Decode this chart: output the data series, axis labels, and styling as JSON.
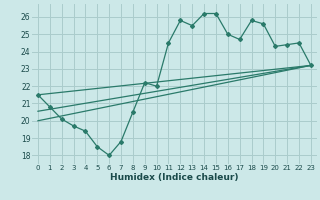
{
  "title": "",
  "xlabel": "Humidex (Indice chaleur)",
  "background_color": "#cce8e8",
  "grid_color": "#aacccc",
  "line_color": "#2a7a6a",
  "x_data": [
    0,
    1,
    2,
    3,
    4,
    5,
    6,
    7,
    8,
    9,
    10,
    11,
    12,
    13,
    14,
    15,
    16,
    17,
    18,
    19,
    20,
    21,
    22,
    23
  ],
  "y_main": [
    21.5,
    20.8,
    20.1,
    19.7,
    19.4,
    18.5,
    18.0,
    18.8,
    20.5,
    22.2,
    22.0,
    24.5,
    25.8,
    25.5,
    26.2,
    26.2,
    25.0,
    24.7,
    25.8,
    25.6,
    24.3,
    24.4,
    24.5,
    23.2
  ],
  "trend1_x": [
    0,
    23
  ],
  "trend1_y": [
    21.5,
    23.2
  ],
  "trend2_x": [
    0,
    23
  ],
  "trend2_y": [
    20.0,
    23.2
  ],
  "trend3_x": [
    0,
    23
  ],
  "trend3_y": [
    20.55,
    23.2
  ],
  "ylim": [
    17.5,
    26.75
  ],
  "xlim": [
    -0.5,
    23.5
  ],
  "yticks": [
    18,
    19,
    20,
    21,
    22,
    23,
    24,
    25,
    26
  ],
  "xticks": [
    0,
    1,
    2,
    3,
    4,
    5,
    6,
    7,
    8,
    9,
    10,
    11,
    12,
    13,
    14,
    15,
    16,
    17,
    18,
    19,
    20,
    21,
    22,
    23
  ]
}
